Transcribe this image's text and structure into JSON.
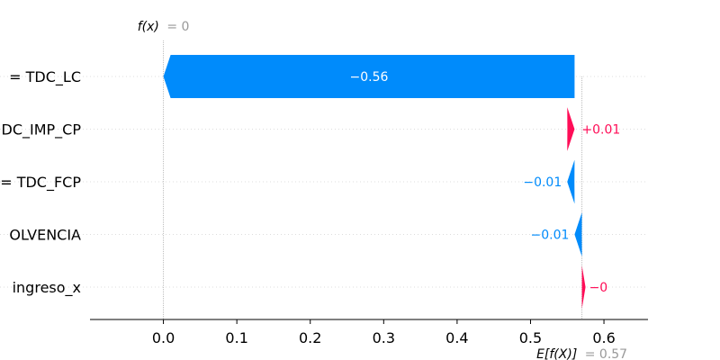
{
  "chart_data": {
    "type": "waterfall",
    "base_value": 0.57,
    "final_value": 0,
    "fx_text": "f(x)",
    "fx_value_text": "= 0",
    "ex_text": "E[f(X)]",
    "ex_value_text": "= 0.57",
    "xlim": [
      -0.1,
      0.66
    ],
    "xticks": [
      0.0,
      0.1,
      0.2,
      0.3,
      0.4,
      0.5,
      0.6
    ],
    "xtick_labels": [
      "0.0",
      "0.1",
      "0.2",
      "0.3",
      "0.4",
      "0.5",
      "0.6"
    ],
    "features": [
      {
        "label": "= TDC_LC",
        "value": -0.56,
        "value_label": "−0.56"
      },
      {
        "label": "DC_IMP_CP",
        "value": 0.01,
        "value_label": "+0.01"
      },
      {
        "label": "= TDC_FCP",
        "value": -0.01,
        "value_label": "−0.01"
      },
      {
        "label": "OLVENCIA",
        "value": -0.01,
        "value_label": "−0.01"
      },
      {
        "label": "ingreso_x",
        "value": -0.0,
        "value_label": "−0"
      }
    ],
    "colors": {
      "positive": "#ff0d57",
      "negative": "#008bfb",
      "gray_text": "#999999",
      "axis": "#000000",
      "grid": "#dddddd"
    }
  }
}
